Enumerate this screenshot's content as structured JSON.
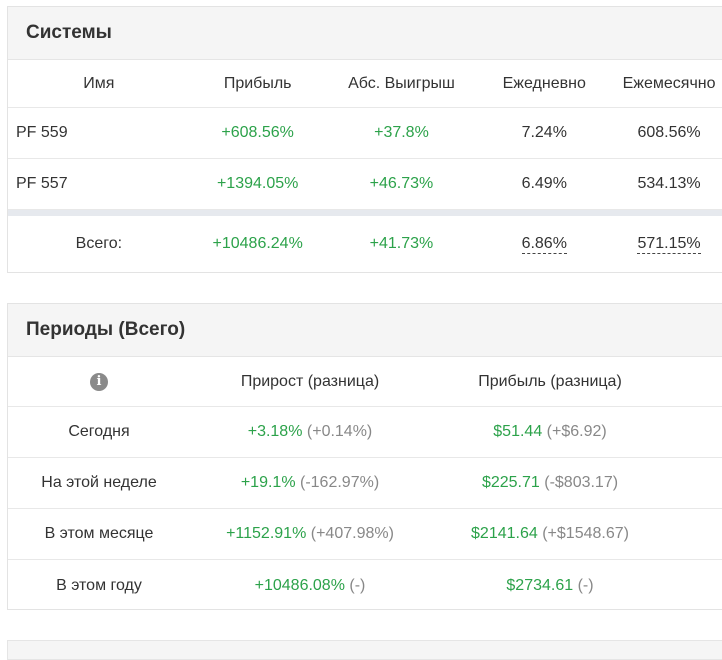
{
  "systems": {
    "title": "Системы",
    "columns": [
      "Имя",
      "Прибыль",
      "Абс. Выигрыш",
      "Ежедневно",
      "Ежемесячно"
    ],
    "rows": [
      {
        "name": "PF 559",
        "profit": "+608.56%",
        "abs_gain": "+37.8%",
        "daily": "7.24%",
        "monthly": "608.56%"
      },
      {
        "name": "PF 557",
        "profit": "+1394.05%",
        "abs_gain": "+46.73%",
        "daily": "6.49%",
        "monthly": "534.13%"
      }
    ],
    "total": {
      "label": "Всего:",
      "profit": "+10486.24%",
      "abs_gain": "+41.73%",
      "daily": "6.86%",
      "monthly": "571.15%"
    }
  },
  "periods": {
    "title": "Периоды (Всего)",
    "info_icon": "info-icon",
    "columns": [
      "Прирост (разница)",
      "Прибыль (разница)"
    ],
    "rows": [
      {
        "label": "Сегодня",
        "growth": "+3.18%",
        "growth_diff": "(+0.14%)",
        "profit": "$51.44",
        "profit_diff": "(+$6.92)"
      },
      {
        "label": "На этой неделе",
        "growth": "+19.1%",
        "growth_diff": "(-162.97%)",
        "profit": "$225.71",
        "profit_diff": "(-$803.17)"
      },
      {
        "label": "В этом месяце",
        "growth": "+1152.91%",
        "growth_diff": "(+407.98%)",
        "profit": "$2141.64",
        "profit_diff": "(+$1548.67)"
      },
      {
        "label": "В этом году",
        "growth": "+10486.08%",
        "growth_diff": "(-)",
        "profit": "$2734.61",
        "profit_diff": "(-)"
      }
    ]
  },
  "colors": {
    "positive": "#2ca24a",
    "muted": "#888888",
    "header_bg": "#f5f5f5"
  }
}
